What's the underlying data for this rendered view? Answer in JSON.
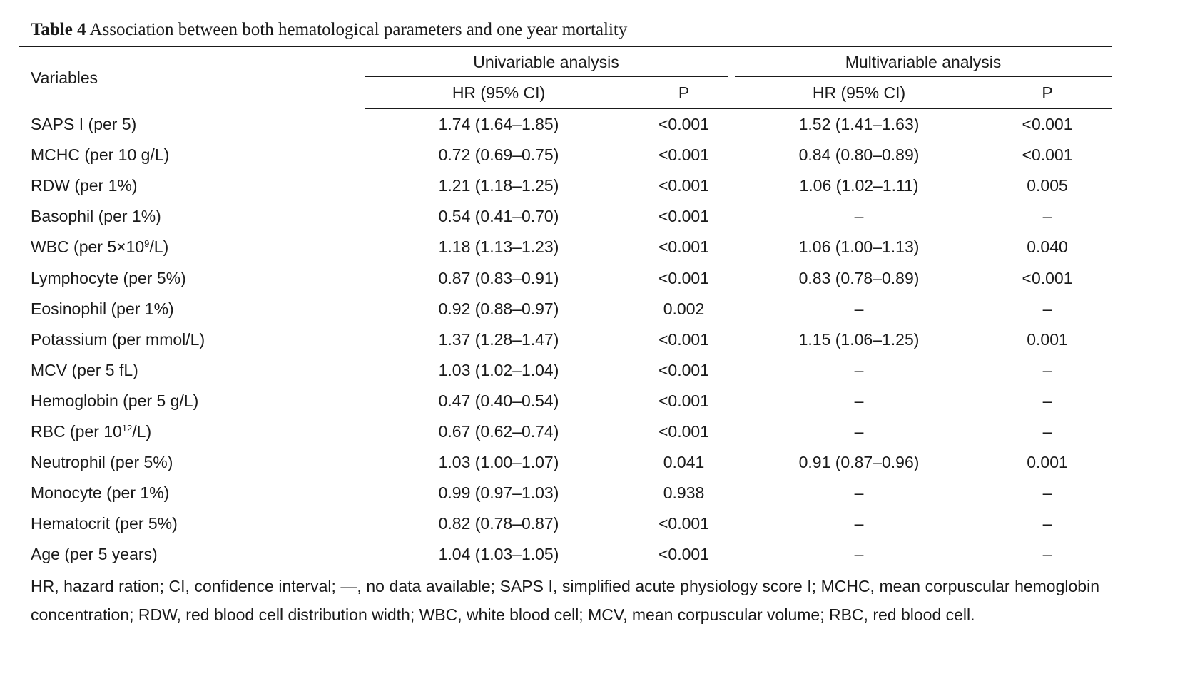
{
  "caption": {
    "label": "Table 4",
    "text": "Association between both hematological parameters and one year mortality"
  },
  "header": {
    "variables": "Variables",
    "univariable": "Univariable analysis",
    "multivariable": "Multivariable analysis",
    "hr_ci": "HR (95% CI)",
    "p": "P"
  },
  "rows": [
    {
      "variable": "SAPS I (per 5)",
      "uni_hr": "1.74 (1.64–1.85)",
      "uni_p": "<0.001",
      "multi_hr": "1.52 (1.41–1.63)",
      "multi_p": "<0.001"
    },
    {
      "variable": "MCHC (per 10 g/L)",
      "uni_hr": "0.72 (0.69–0.75)",
      "uni_p": "<0.001",
      "multi_hr": "0.84 (0.80–0.89)",
      "multi_p": "<0.001"
    },
    {
      "variable": "RDW (per 1%)",
      "uni_hr": "1.21 (1.18–1.25)",
      "uni_p": "<0.001",
      "multi_hr": "1.06 (1.02–1.11)",
      "multi_p": "0.005"
    },
    {
      "variable": "Basophil (per 1%)",
      "uni_hr": "0.54 (0.41–0.70)",
      "uni_p": "<0.001",
      "multi_hr": "–",
      "multi_p": "–"
    },
    {
      "variable_pre": "WBC (per 5×10",
      "variable_sup": "9",
      "variable_post": "/L)",
      "uni_hr": "1.18 (1.13–1.23)",
      "uni_p": "<0.001",
      "multi_hr": "1.06 (1.00–1.13)",
      "multi_p": "0.040"
    },
    {
      "variable": "Lymphocyte (per 5%)",
      "uni_hr": "0.87 (0.83–0.91)",
      "uni_p": "<0.001",
      "multi_hr": "0.83 (0.78–0.89)",
      "multi_p": "<0.001"
    },
    {
      "variable": "Eosinophil (per 1%)",
      "uni_hr": "0.92 (0.88–0.97)",
      "uni_p": "0.002",
      "multi_hr": "–",
      "multi_p": "–"
    },
    {
      "variable": "Potassium (per mmol/L)",
      "uni_hr": "1.37 (1.28–1.47)",
      "uni_p": "<0.001",
      "multi_hr": "1.15 (1.06–1.25)",
      "multi_p": "0.001"
    },
    {
      "variable": "MCV (per 5 fL)",
      "uni_hr": "1.03 (1.02–1.04)",
      "uni_p": "<0.001",
      "multi_hr": "–",
      "multi_p": "–"
    },
    {
      "variable": "Hemoglobin (per 5 g/L)",
      "uni_hr": "0.47 (0.40–0.54)",
      "uni_p": "<0.001",
      "multi_hr": "–",
      "multi_p": "–"
    },
    {
      "variable_pre": "RBC (per 10",
      "variable_sup": "12",
      "variable_post": "/L)",
      "uni_hr": "0.67 (0.62–0.74)",
      "uni_p": "<0.001",
      "multi_hr": "–",
      "multi_p": "–"
    },
    {
      "variable": "Neutrophil (per 5%)",
      "uni_hr": "1.03 (1.00–1.07)",
      "uni_p": "0.041",
      "multi_hr": "0.91 (0.87–0.96)",
      "multi_p": "0.001"
    },
    {
      "variable": "Monocyte (per 1%)",
      "uni_hr": "0.99 (0.97–1.03)",
      "uni_p": "0.938",
      "multi_hr": "–",
      "multi_p": "–"
    },
    {
      "variable": "Hematocrit (per 5%)",
      "uni_hr": "0.82 (0.78–0.87)",
      "uni_p": "<0.001",
      "multi_hr": "–",
      "multi_p": "–"
    },
    {
      "variable": "Age (per 5 years)",
      "uni_hr": "1.04 (1.03–1.05)",
      "uni_p": "<0.001",
      "multi_hr": "–",
      "multi_p": "–"
    }
  ],
  "footnote": "HR, hazard ration; CI, confidence interval; —, no data available; SAPS I, simplified acute physiology score I; MCHC, mean corpuscular hemoglobin concentration; RDW, red blood cell distribution width; WBC, white blood cell; MCV, mean corpuscular volume; RBC, red blood cell."
}
